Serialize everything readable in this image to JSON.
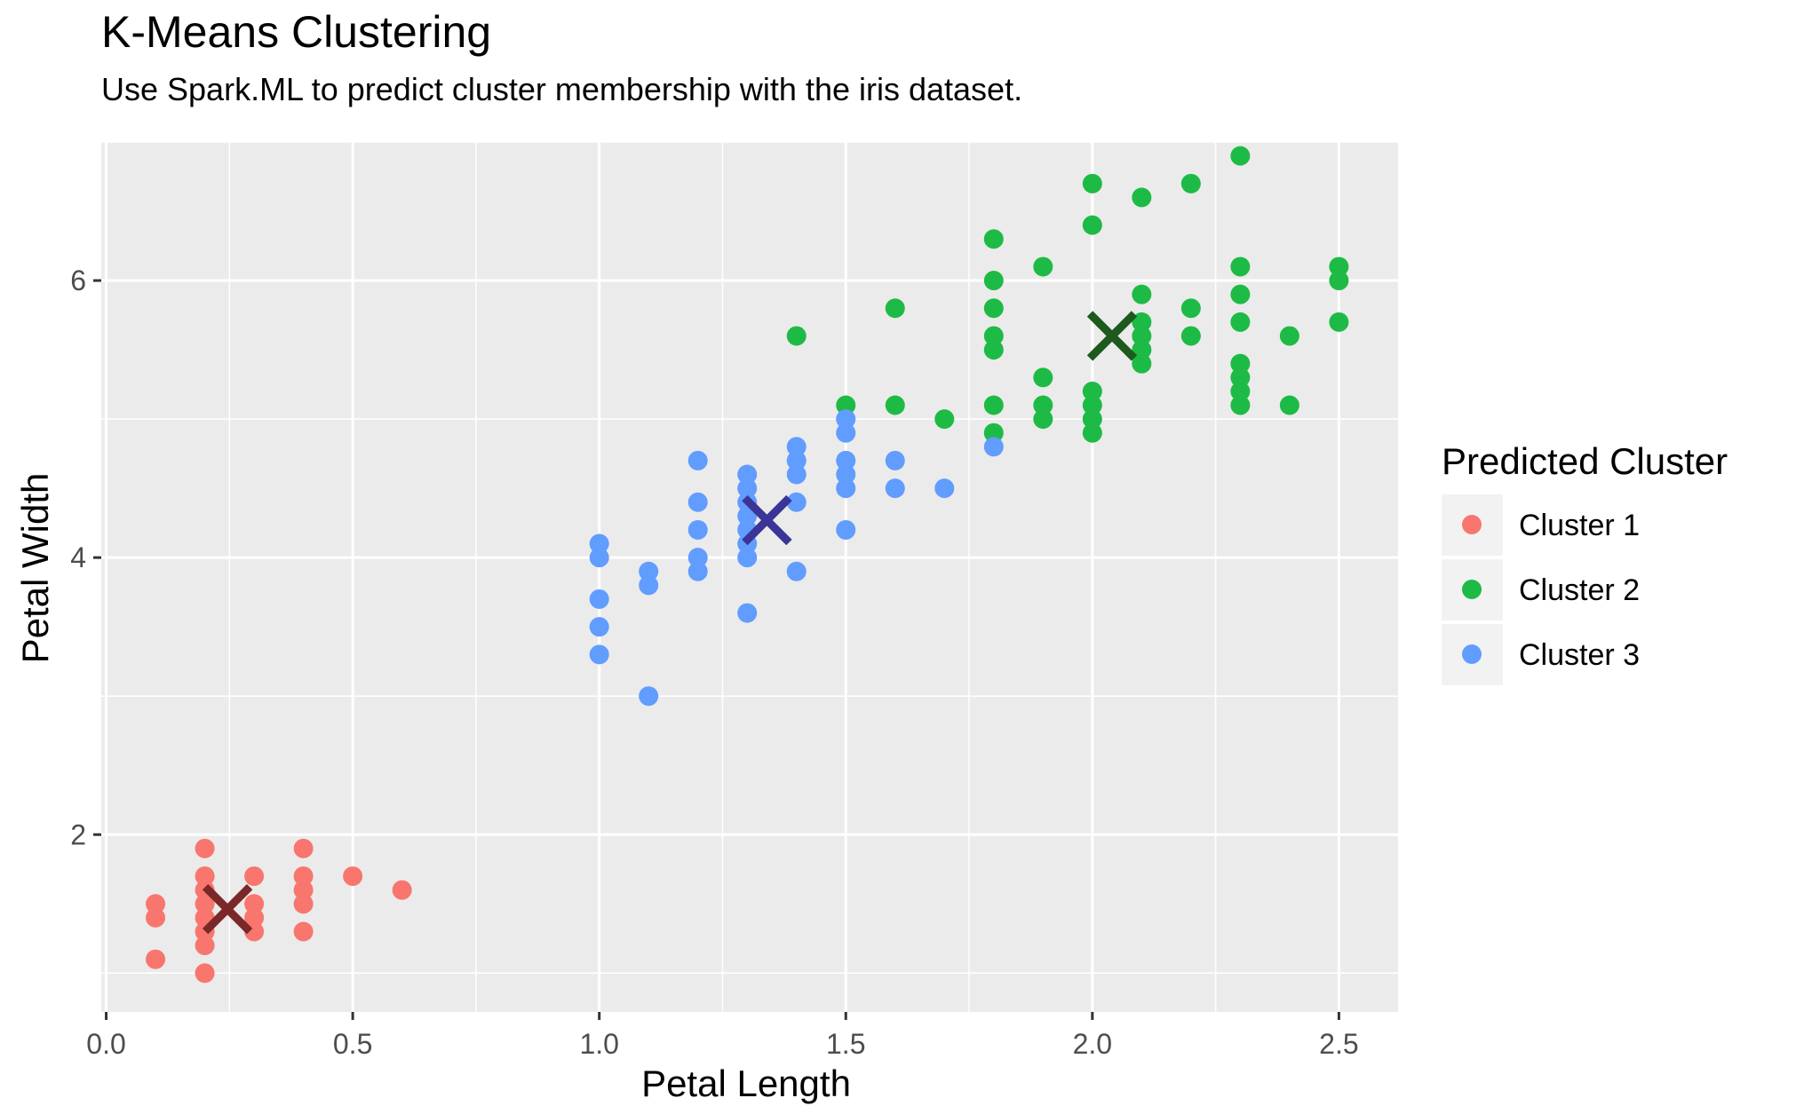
{
  "chart_data": {
    "type": "scatter",
    "title": "K-Means Clustering",
    "subtitle": "Use Spark.ML to predict cluster membership with the iris dataset.",
    "xlabel": "Petal Length",
    "ylabel": "Petal Width",
    "xlim": [
      -0.01,
      2.62
    ],
    "ylim": [
      0.72,
      7.0
    ],
    "x_ticks": [
      0.0,
      0.5,
      1.0,
      1.5,
      2.0,
      2.5
    ],
    "x_tick_labels": [
      "0.0",
      "0.5",
      "1.0",
      "1.5",
      "2.0",
      "2.5"
    ],
    "y_ticks": [
      2,
      4,
      6
    ],
    "y_tick_labels": [
      "2",
      "4",
      "6"
    ],
    "grid": true,
    "legend": {
      "title": "Predicted Cluster",
      "placement": "right",
      "entries": [
        "Cluster 1",
        "Cluster 2",
        "Cluster 3"
      ]
    },
    "colors": {
      "Cluster 1": "#F8766D",
      "Cluster 2": "#1DBB45",
      "Cluster 3": "#619CFF",
      "panel_background": "#EBEBEB",
      "grid": "#FFFFFF",
      "centroid_1": "#7A2828",
      "centroid_2": "#1E5A1E",
      "centroid_3": "#3A3596"
    },
    "series": [
      {
        "name": "Cluster 1",
        "points": [
          [
            0.1,
            1.1
          ],
          [
            0.1,
            1.4
          ],
          [
            0.1,
            1.5
          ],
          [
            0.2,
            1.0
          ],
          [
            0.2,
            1.2
          ],
          [
            0.2,
            1.3
          ],
          [
            0.2,
            1.4
          ],
          [
            0.2,
            1.5
          ],
          [
            0.2,
            1.6
          ],
          [
            0.2,
            1.7
          ],
          [
            0.2,
            1.9
          ],
          [
            0.3,
            1.3
          ],
          [
            0.3,
            1.4
          ],
          [
            0.3,
            1.5
          ],
          [
            0.3,
            1.7
          ],
          [
            0.4,
            1.3
          ],
          [
            0.4,
            1.5
          ],
          [
            0.4,
            1.6
          ],
          [
            0.4,
            1.7
          ],
          [
            0.4,
            1.9
          ],
          [
            0.5,
            1.7
          ],
          [
            0.6,
            1.6
          ]
        ]
      },
      {
        "name": "Cluster 2",
        "points": [
          [
            1.4,
            5.6
          ],
          [
            1.5,
            5.1
          ],
          [
            1.6,
            5.1
          ],
          [
            1.6,
            5.8
          ],
          [
            1.7,
            5.0
          ],
          [
            1.8,
            4.9
          ],
          [
            1.8,
            5.1
          ],
          [
            1.8,
            5.5
          ],
          [
            1.8,
            5.6
          ],
          [
            1.8,
            5.8
          ],
          [
            1.8,
            6.0
          ],
          [
            1.8,
            6.3
          ],
          [
            1.9,
            5.0
          ],
          [
            1.9,
            5.1
          ],
          [
            1.9,
            5.3
          ],
          [
            1.9,
            6.1
          ],
          [
            2.0,
            4.9
          ],
          [
            2.0,
            5.0
          ],
          [
            2.0,
            5.1
          ],
          [
            2.0,
            5.2
          ],
          [
            2.0,
            6.4
          ],
          [
            2.0,
            6.7
          ],
          [
            2.1,
            5.4
          ],
          [
            2.1,
            5.5
          ],
          [
            2.1,
            5.6
          ],
          [
            2.1,
            5.7
          ],
          [
            2.1,
            5.9
          ],
          [
            2.1,
            6.6
          ],
          [
            2.2,
            5.6
          ],
          [
            2.2,
            5.8
          ],
          [
            2.2,
            6.7
          ],
          [
            2.3,
            5.1
          ],
          [
            2.3,
            5.2
          ],
          [
            2.3,
            5.3
          ],
          [
            2.3,
            5.4
          ],
          [
            2.3,
            5.7
          ],
          [
            2.3,
            5.9
          ],
          [
            2.3,
            6.1
          ],
          [
            2.3,
            6.9
          ],
          [
            2.4,
            5.1
          ],
          [
            2.4,
            5.6
          ],
          [
            2.5,
            5.7
          ],
          [
            2.5,
            6.0
          ],
          [
            2.5,
            6.1
          ]
        ]
      },
      {
        "name": "Cluster 3",
        "points": [
          [
            1.0,
            3.3
          ],
          [
            1.0,
            3.5
          ],
          [
            1.0,
            3.7
          ],
          [
            1.0,
            4.0
          ],
          [
            1.0,
            4.1
          ],
          [
            1.1,
            3.0
          ],
          [
            1.1,
            3.8
          ],
          [
            1.1,
            3.9
          ],
          [
            1.2,
            3.9
          ],
          [
            1.2,
            4.0
          ],
          [
            1.2,
            4.2
          ],
          [
            1.2,
            4.4
          ],
          [
            1.2,
            4.7
          ],
          [
            1.3,
            3.6
          ],
          [
            1.3,
            4.0
          ],
          [
            1.3,
            4.1
          ],
          [
            1.3,
            4.2
          ],
          [
            1.3,
            4.3
          ],
          [
            1.3,
            4.4
          ],
          [
            1.3,
            4.5
          ],
          [
            1.3,
            4.6
          ],
          [
            1.4,
            3.9
          ],
          [
            1.4,
            4.4
          ],
          [
            1.4,
            4.6
          ],
          [
            1.4,
            4.7
          ],
          [
            1.4,
            4.8
          ],
          [
            1.5,
            4.2
          ],
          [
            1.5,
            4.5
          ],
          [
            1.5,
            4.6
          ],
          [
            1.5,
            4.7
          ],
          [
            1.5,
            4.9
          ],
          [
            1.5,
            5.0
          ],
          [
            1.6,
            4.5
          ],
          [
            1.6,
            4.7
          ],
          [
            1.7,
            4.5
          ],
          [
            1.8,
            4.8
          ]
        ]
      }
    ],
    "centroids": [
      {
        "cluster": "Cluster 1",
        "x": 0.246,
        "y": 1.462
      },
      {
        "cluster": "Cluster 2",
        "x": 2.04,
        "y": 5.6
      },
      {
        "cluster": "Cluster 3",
        "x": 1.34,
        "y": 4.27
      }
    ]
  }
}
